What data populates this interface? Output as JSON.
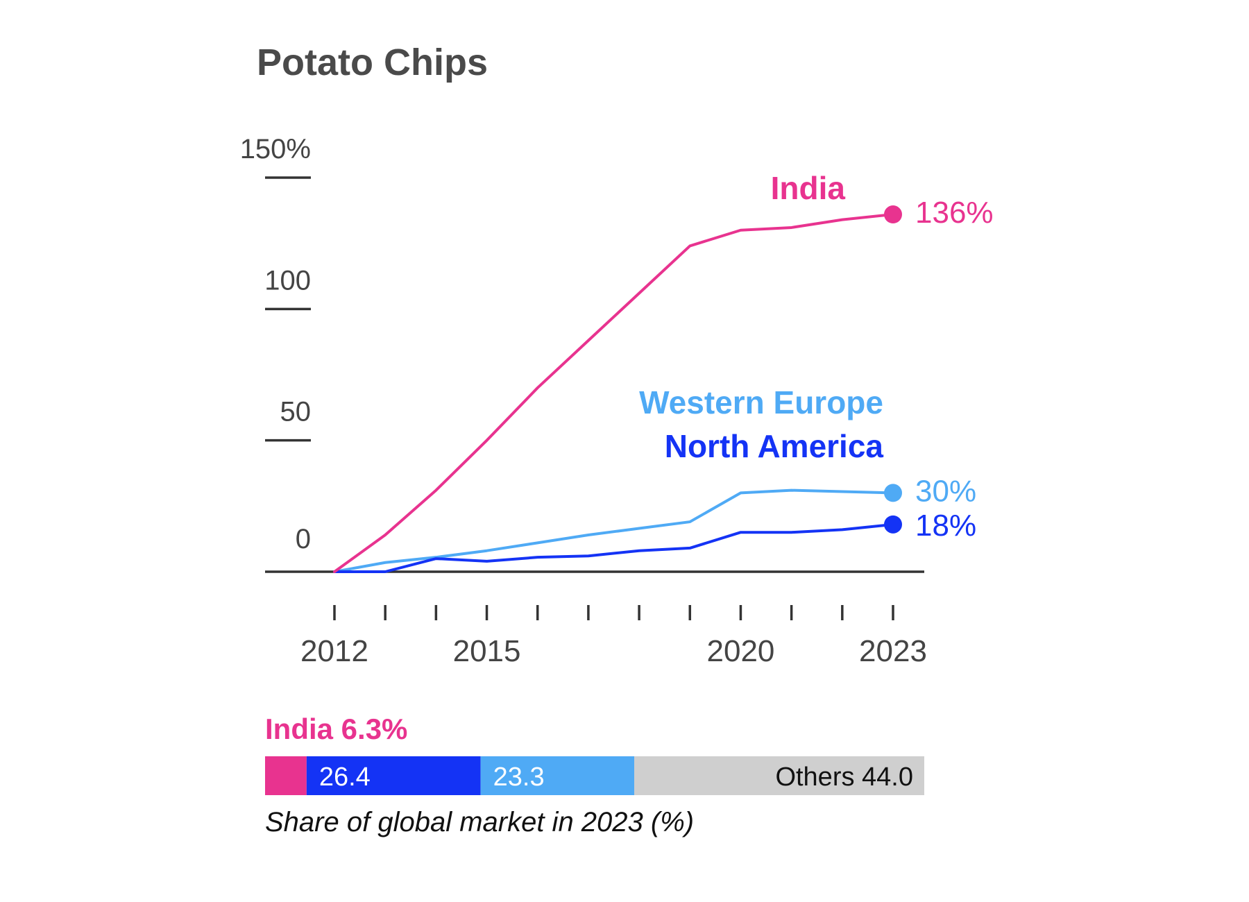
{
  "colors": {
    "india": "#e8338f",
    "north_america": "#1433f5",
    "western_europe": "#4faaf5",
    "others": "#cfcfcf",
    "axis": "#333333",
    "text": "#444444"
  },
  "chart_data": [
    {
      "type": "line",
      "title": "Potato Chips",
      "xlabel": "",
      "ylabel": "",
      "x": [
        2012,
        2013,
        2014,
        2015,
        2016,
        2017,
        2018,
        2019,
        2020,
        2021,
        2022,
        2023
      ],
      "xlim": [
        2012,
        2023
      ],
      "ylim": [
        0,
        150
      ],
      "x_tick_labels": [
        "2012",
        "2015",
        "2020",
        "2023"
      ],
      "x_tick_label_values": [
        2012,
        2015,
        2020,
        2023
      ],
      "y_ticks": [
        0,
        50,
        100,
        150
      ],
      "y_tick_labels": [
        "0",
        "50",
        "100",
        "150%"
      ],
      "series": [
        {
          "key": "india",
          "name": "India",
          "end_label": "136%",
          "values": [
            0,
            14,
            31,
            50,
            70,
            88,
            106,
            124,
            130,
            131,
            134,
            136
          ]
        },
        {
          "key": "western_europe",
          "name": "Western Europe",
          "end_label": "30%",
          "values": [
            0,
            3.5,
            5.5,
            8,
            11,
            14,
            16.5,
            19,
            30,
            31,
            30.5,
            30
          ]
        },
        {
          "key": "north_america",
          "name": "North America",
          "end_label": "18%",
          "values": [
            0,
            0,
            5,
            4,
            5.5,
            6,
            8,
            9,
            15,
            15,
            16,
            18
          ]
        }
      ]
    },
    {
      "type": "bar",
      "subtype": "stacked-100",
      "caption": "Share of global market in 2023 (%)",
      "categories": [
        "India",
        "North America",
        "Western Europe",
        "Others"
      ],
      "values": [
        6.3,
        26.4,
        23.3,
        44.0
      ],
      "labels": [
        "India 6.3%",
        "26.4",
        "23.3",
        "Others 44.0"
      ]
    }
  ]
}
